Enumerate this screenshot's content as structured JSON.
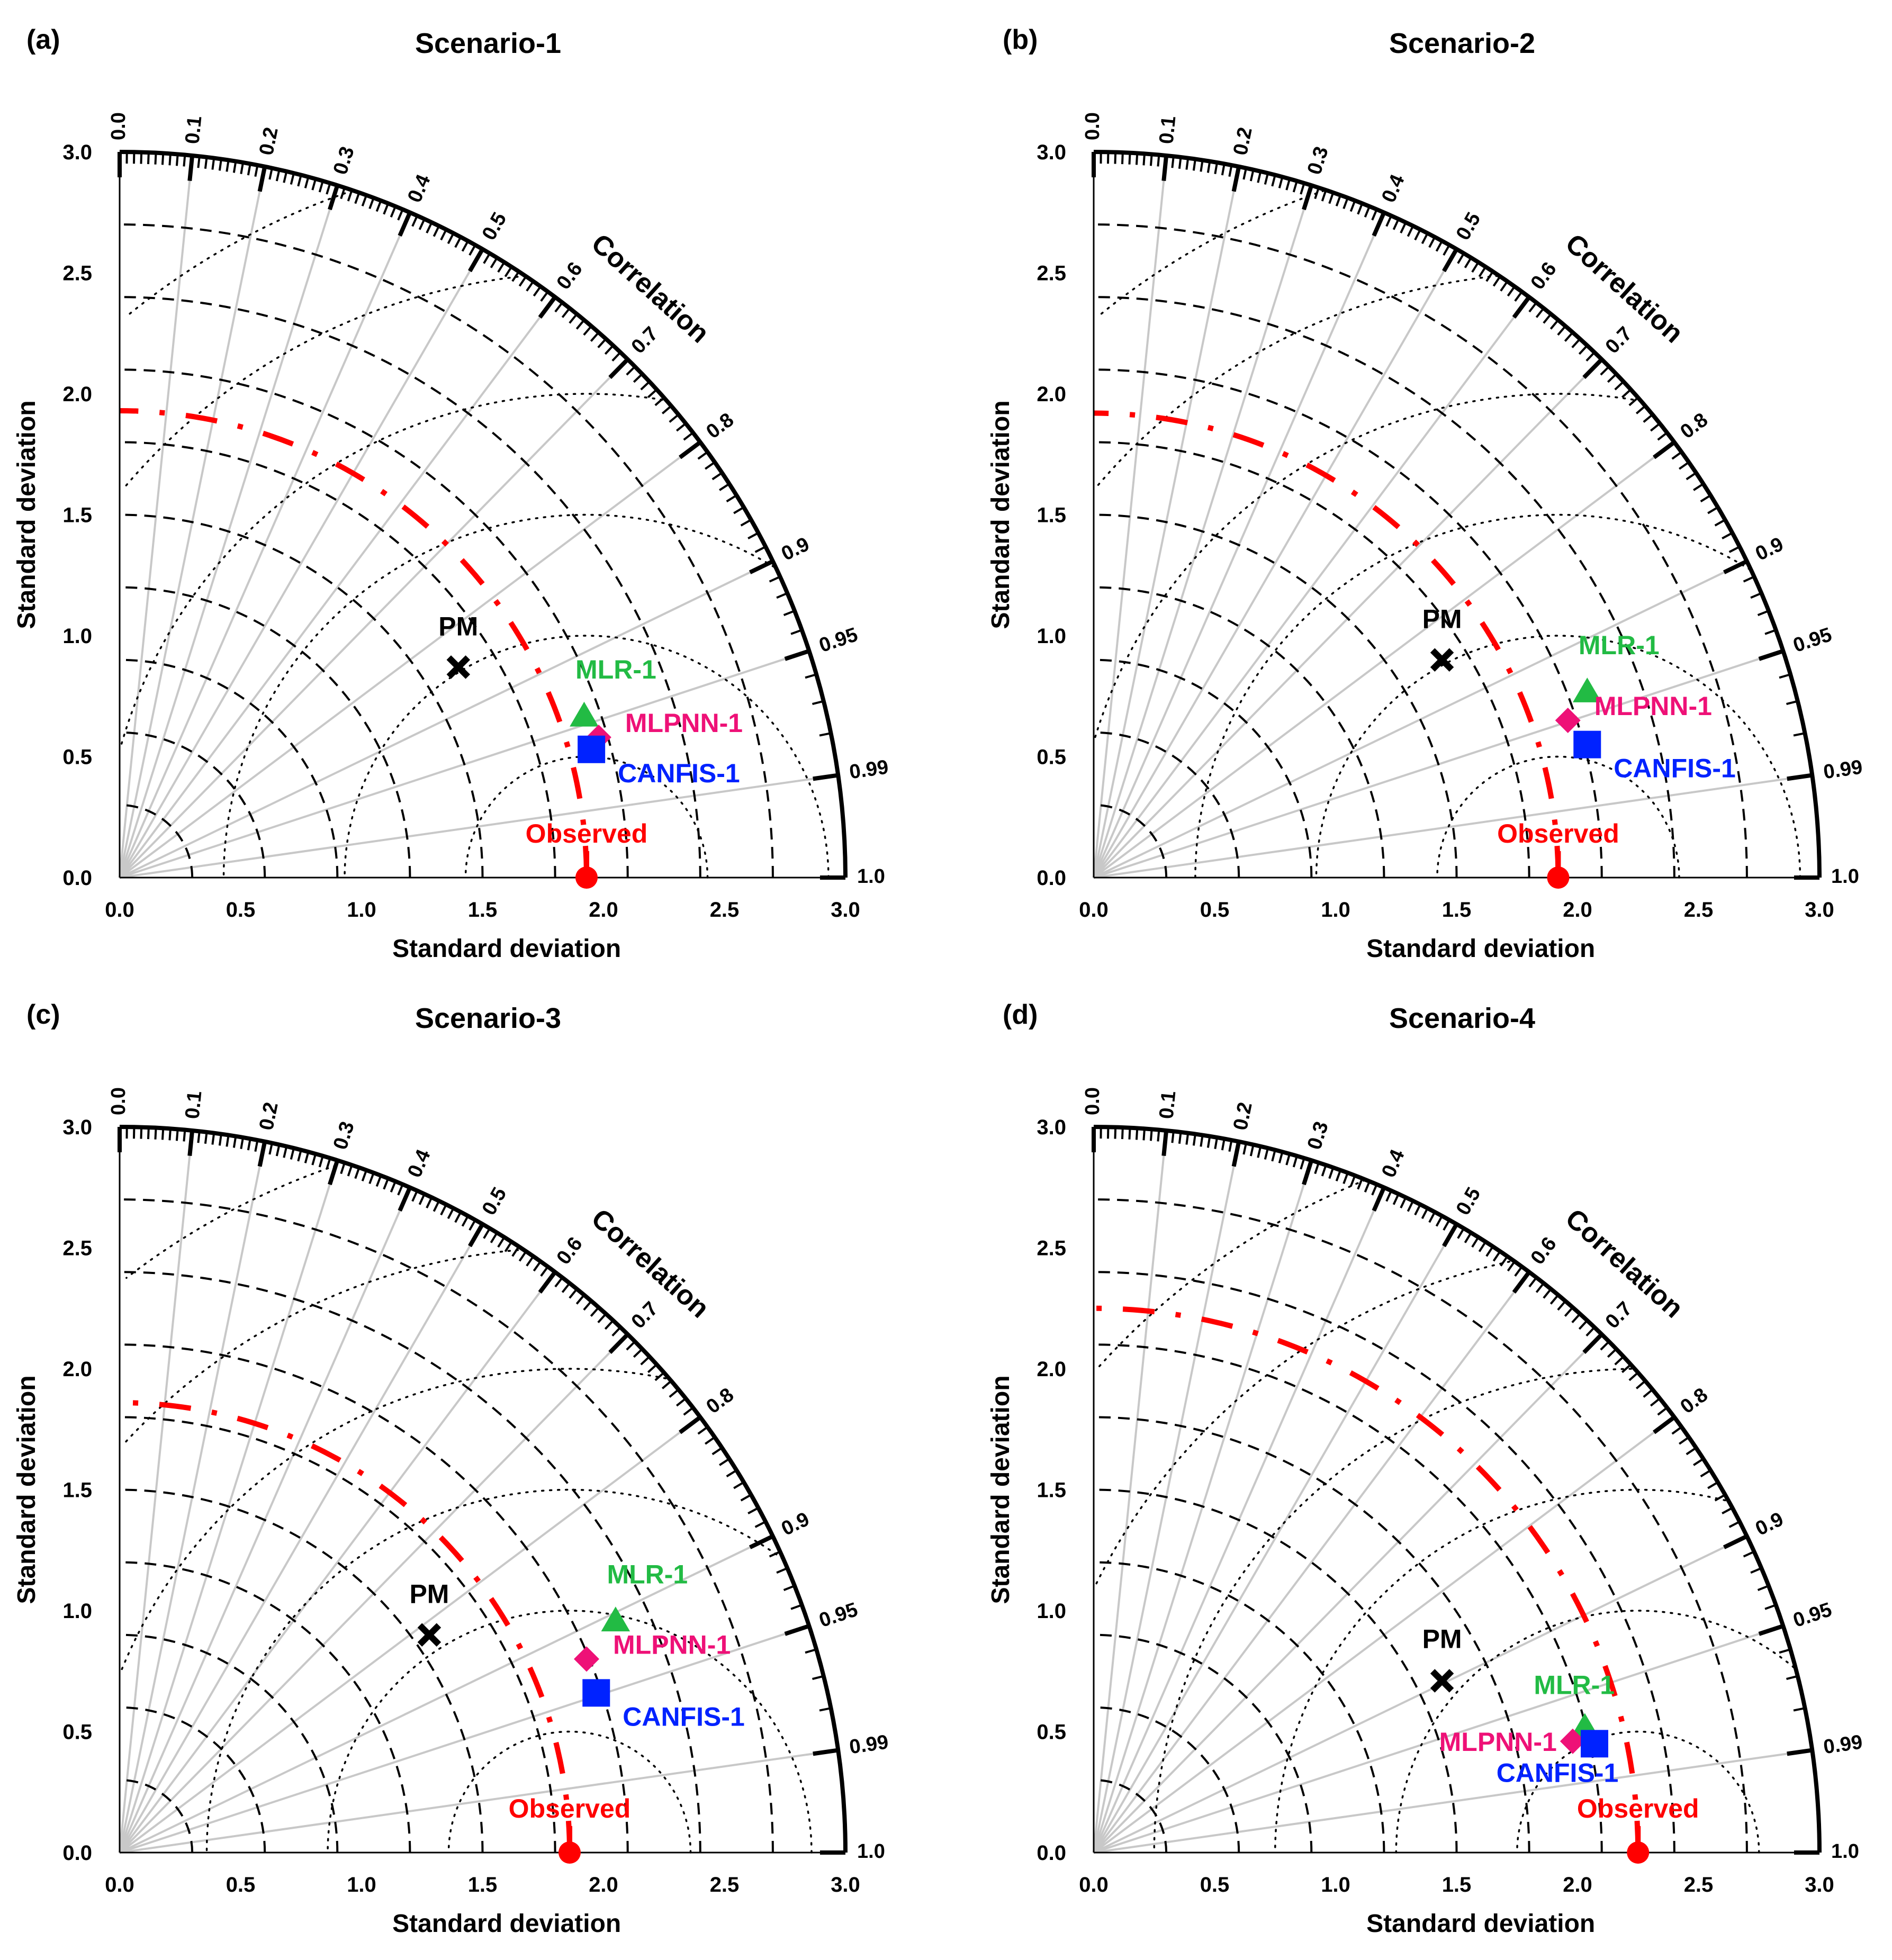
{
  "figure": {
    "colors": {
      "observed": "#ff0000",
      "mlr": "#22bb44",
      "mlpnn": "#ee1177",
      "canfis": "#0022ff",
      "pm": "#000000",
      "axis": "#000000",
      "radial_line": "#c8c8c8",
      "dashed_arc": "#000000",
      "dotted_arc": "#000000"
    },
    "markers": {
      "pm": "x-cross",
      "mlr": "triangle",
      "mlpnn": "diamond",
      "canfis": "square",
      "observed": "circle"
    },
    "common": {
      "x_label": "Standard deviation",
      "y_label": "Standard deviation",
      "correlation_label": "Correlation",
      "std_ticks": [
        "0.0",
        "0.5",
        "1.0",
        "1.5",
        "2.0",
        "2.5",
        "3.0"
      ],
      "correlation_ticks": [
        "0.0",
        "0.1",
        "0.2",
        "0.3",
        "0.4",
        "0.5",
        "0.6",
        "0.7",
        "0.8",
        "0.9",
        "0.95",
        "0.99",
        "1.0"
      ]
    }
  },
  "chart_data": [
    {
      "type": "taylor",
      "panel_label": "(a)",
      "title": "Scenario-1",
      "xlabel": "Standard deviation",
      "ylabel": "Standard deviation",
      "std_range": [
        0,
        3.0
      ],
      "dashed_std_arcs": [
        0.3,
        0.6,
        0.9,
        1.2,
        1.5,
        1.8,
        2.1,
        2.4,
        2.7
      ],
      "dotted_rmsd_arcs": [
        0.5,
        1.0,
        1.5,
        2.0,
        2.5,
        3.0
      ],
      "observed": {
        "label": "Observed",
        "std": 1.93
      },
      "points": [
        {
          "label": "PM",
          "x": 1.4,
          "y": 0.87
        },
        {
          "label": "MLR-1",
          "x": 1.92,
          "y": 0.67
        },
        {
          "label": "MLPNN-1",
          "x": 1.98,
          "y": 0.58
        },
        {
          "label": "CANFIS-1",
          "x": 1.95,
          "y": 0.53
        }
      ]
    },
    {
      "type": "taylor",
      "panel_label": "(b)",
      "title": "Scenario-2",
      "xlabel": "Standard deviation",
      "ylabel": "Standard deviation",
      "std_range": [
        0,
        3.0
      ],
      "dashed_std_arcs": [
        0.3,
        0.6,
        0.9,
        1.2,
        1.5,
        1.8,
        2.1,
        2.4,
        2.7
      ],
      "dotted_rmsd_arcs": [
        0.5,
        1.0,
        1.5,
        2.0,
        2.5,
        3.0
      ],
      "observed": {
        "label": "Observed",
        "std": 1.92
      },
      "points": [
        {
          "label": "PM",
          "x": 1.44,
          "y": 0.9
        },
        {
          "label": "MLR-1",
          "x": 2.04,
          "y": 0.77
        },
        {
          "label": "MLPNN-1",
          "x": 1.96,
          "y": 0.65
        },
        {
          "label": "CANFIS-1",
          "x": 2.04,
          "y": 0.55
        }
      ]
    },
    {
      "type": "taylor",
      "panel_label": "(c)",
      "title": "Scenario-3",
      "xlabel": "Standard deviation",
      "ylabel": "Standard deviation",
      "std_range": [
        0,
        3.0
      ],
      "dashed_std_arcs": [
        0.3,
        0.6,
        0.9,
        1.2,
        1.5,
        1.8,
        2.1,
        2.4,
        2.7
      ],
      "dotted_rmsd_arcs": [
        0.5,
        1.0,
        1.5,
        2.0,
        2.5,
        3.0
      ],
      "observed": {
        "label": "Observed",
        "std": 1.86
      },
      "points": [
        {
          "label": "PM",
          "x": 1.28,
          "y": 0.9
        },
        {
          "label": "MLR-1",
          "x": 2.05,
          "y": 0.96
        },
        {
          "label": "MLPNN-1",
          "x": 1.93,
          "y": 0.8
        },
        {
          "label": "CANFIS-1",
          "x": 1.97,
          "y": 0.66
        }
      ]
    },
    {
      "type": "taylor",
      "panel_label": "(d)",
      "title": "Scenario-4",
      "xlabel": "Standard deviation",
      "ylabel": "Standard deviation",
      "std_range": [
        0,
        3.0
      ],
      "dashed_std_arcs": [
        0.3,
        0.6,
        0.9,
        1.2,
        1.5,
        1.8,
        2.1,
        2.4,
        2.7
      ],
      "dotted_rmsd_arcs": [
        0.5,
        1.0,
        1.5,
        2.0,
        2.5,
        3.0
      ],
      "observed": {
        "label": "Observed",
        "std": 2.25
      },
      "points": [
        {
          "label": "PM",
          "x": 1.44,
          "y": 0.71
        },
        {
          "label": "MLR-1",
          "x": 2.03,
          "y": 0.52
        },
        {
          "label": "MLPNN-1",
          "x": 1.98,
          "y": 0.46
        },
        {
          "label": "CANFIS-1",
          "x": 2.07,
          "y": 0.45
        }
      ]
    }
  ]
}
